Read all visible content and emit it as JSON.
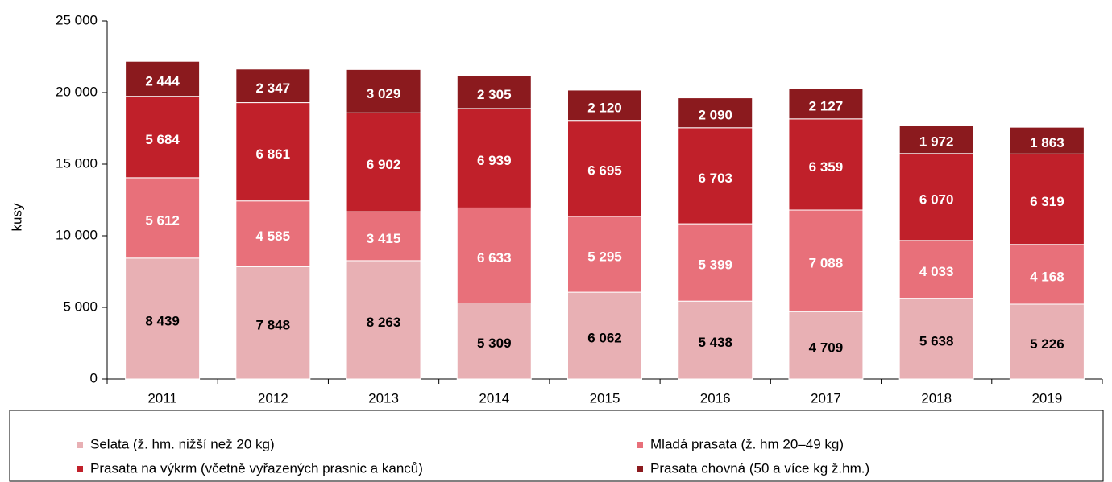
{
  "chart_data": {
    "type": "stacked-bar",
    "y_label": "kusy",
    "categories": [
      "2011",
      "2012",
      "2013",
      "2014",
      "2015",
      "2016",
      "2017",
      "2018",
      "2019"
    ],
    "series": [
      {
        "name": "Selata (ž. hm. nižší než 20 kg)",
        "color": "#e8b0b4",
        "values": [
          8439,
          7848,
          8263,
          5309,
          6062,
          5438,
          4709,
          5638,
          5226
        ],
        "value_labels": [
          "8 439",
          "7 848",
          "8 263",
          "5 309",
          "6 062",
          "5 438",
          "4 709",
          "5 638",
          "5 226"
        ]
      },
      {
        "name": "Mladá prasata (ž. hm 20–49 kg)",
        "color": "#e8707a",
        "values": [
          5612,
          4585,
          3415,
          6633,
          5295,
          5399,
          7088,
          4033,
          4168
        ],
        "value_labels": [
          "5 612",
          "4 585",
          "3 415",
          "6 633",
          "5 295",
          "5 399",
          "7 088",
          "4 033",
          "4 168"
        ]
      },
      {
        "name": "Prasata na výkrm (včetně vyřazených prasnic a kanců)",
        "color": "#c0202a",
        "values": [
          5684,
          6861,
          6902,
          6939,
          6695,
          6703,
          6359,
          6070,
          6319
        ],
        "value_labels": [
          "5 684",
          "6 861",
          "6 902",
          "6 939",
          "6 695",
          "6 703",
          "6 359",
          "6 070",
          "6 319"
        ]
      },
      {
        "name": "Prasata chovná (50 a více kg ž.hm.)",
        "color": "#8b1a1e",
        "values": [
          2444,
          2347,
          3029,
          2305,
          2120,
          2090,
          2127,
          1972,
          1863
        ],
        "value_labels": [
          "2 444",
          "2 347",
          "3 029",
          "2 305",
          "2 120",
          "2 090",
          "2 127",
          "1 972",
          "1 863"
        ]
      }
    ],
    "ylim": [
      0,
      25000
    ],
    "yticks": [
      0,
      {
        "value": 5000,
        "label": "5 000"
      },
      {
        "value": 10000,
        "label": "10 000"
      },
      {
        "value": 15000,
        "label": "15 000"
      },
      {
        "value": 20000,
        "label": "20 000"
      },
      {
        "value": 25000,
        "label": "25 000"
      }
    ],
    "grid": false,
    "legend": "bottom"
  }
}
